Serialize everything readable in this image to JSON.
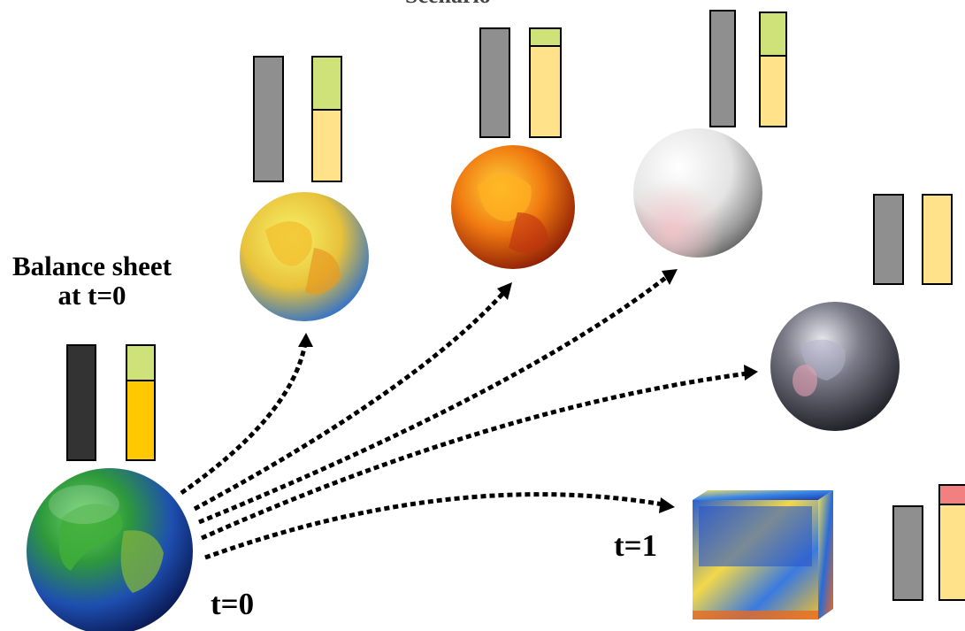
{
  "labels": {
    "balance_sheet": "Balance sheet",
    "balance_sheet_time": "at t=0",
    "time_start": "t=0",
    "time_end": "t=1",
    "top_cut": "Scenario"
  },
  "colors": {
    "assets_t0": "#333333",
    "assets": "#8f8f8f",
    "equity": "#cfe27a",
    "liabilities_t0": "#ffc800",
    "liabilities": "#ffe28a",
    "deficit": "#f28080",
    "arrow": "#000000"
  },
  "icons": {
    "origin": "earth-globe-icon",
    "scenario_1": "yellow-earth-icon",
    "scenario_2": "red-earth-icon",
    "scenario_3": "white-sphere-icon",
    "scenario_4": "grey-metallic-globe-icon",
    "scenario_5": "blue-yellow-cube-icon"
  }
}
